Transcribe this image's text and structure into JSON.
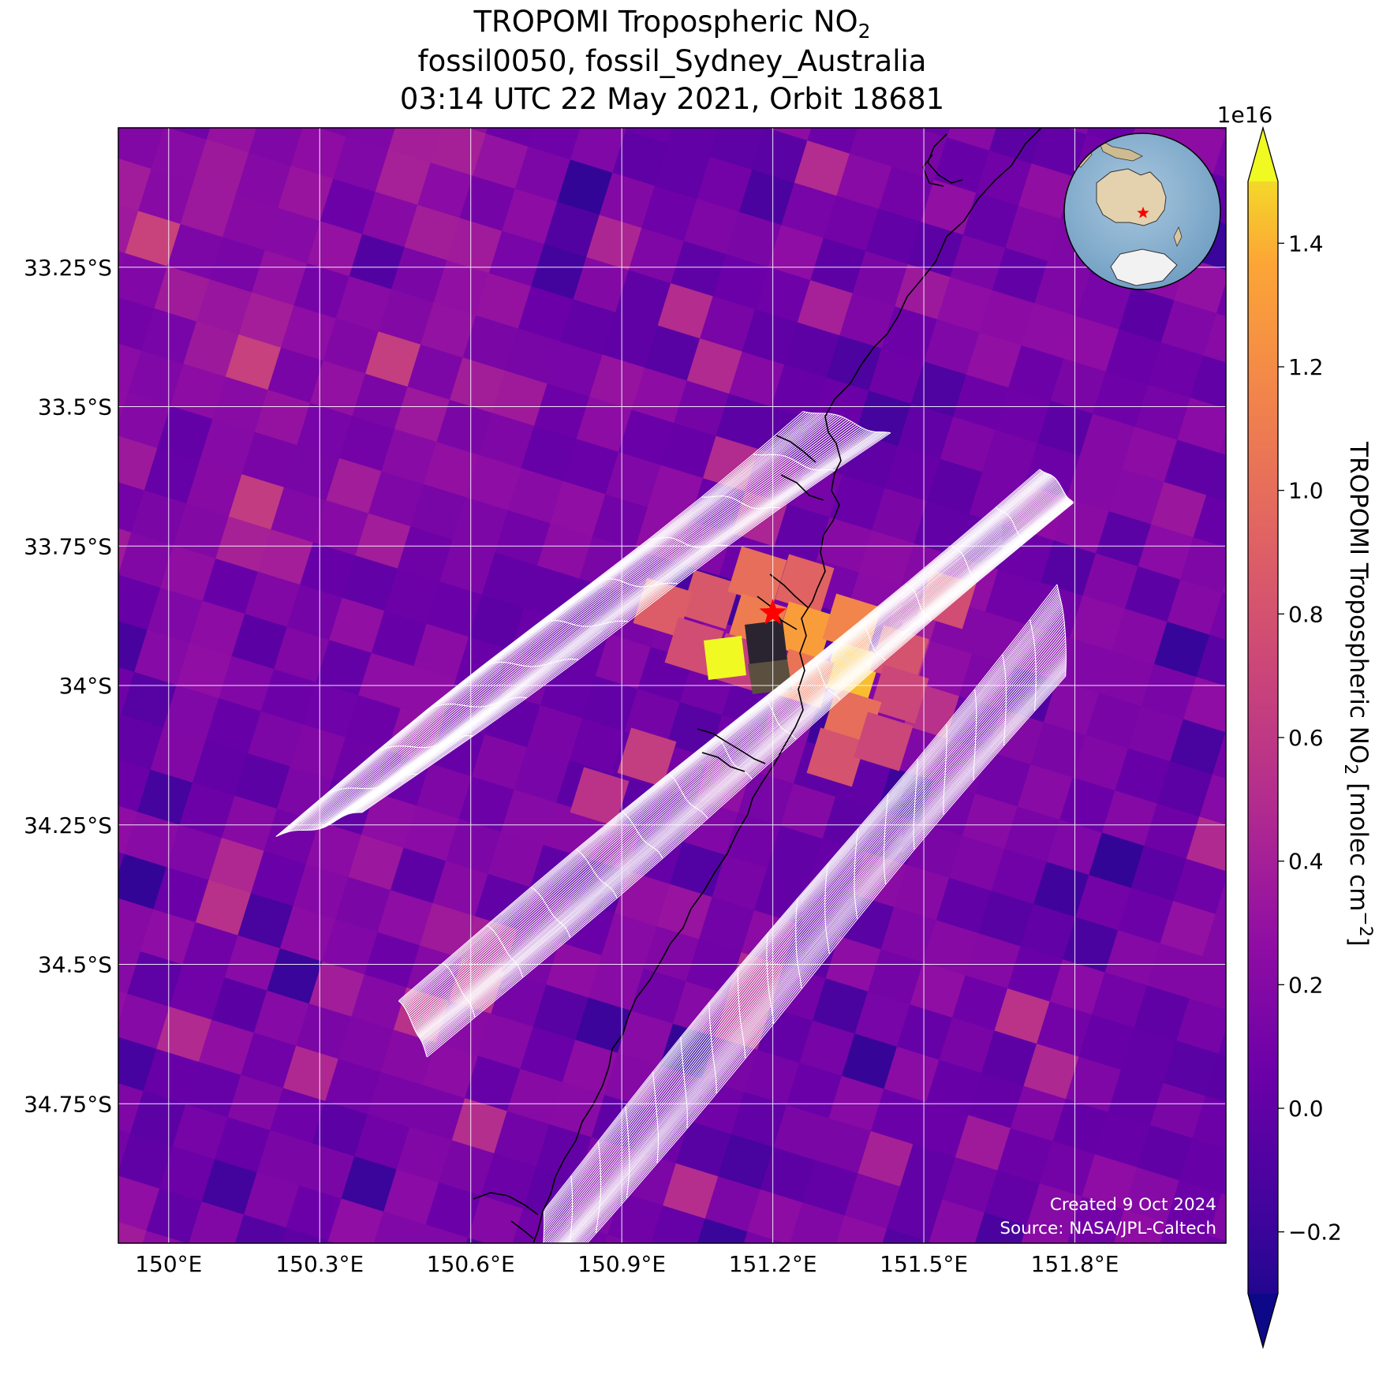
{
  "title": {
    "line1_main": "TROPOMI Tropospheric NO",
    "line1_sub": "2",
    "line2": "fossil0050, fossil_Sydney_Australia",
    "line3": "03:14 UTC 22 May 2021, Orbit 18681"
  },
  "axes": {
    "lon_ticks": [
      {
        "value": 150.0,
        "label": "150°E"
      },
      {
        "value": 150.3,
        "label": "150.3°E"
      },
      {
        "value": 150.6,
        "label": "150.6°E"
      },
      {
        "value": 150.9,
        "label": "150.9°E"
      },
      {
        "value": 151.2,
        "label": "151.2°E"
      },
      {
        "value": 151.5,
        "label": "151.5°E"
      },
      {
        "value": 151.8,
        "label": "151.8°E"
      }
    ],
    "lat_ticks": [
      {
        "value": -33.25,
        "label": "33.25°S"
      },
      {
        "value": -33.5,
        "label": "33.5°S"
      },
      {
        "value": -33.75,
        "label": "33.75°S"
      },
      {
        "value": -34.0,
        "label": "34°S"
      },
      {
        "value": -34.25,
        "label": "34.25°S"
      },
      {
        "value": -34.5,
        "label": "34.5°S"
      },
      {
        "value": -34.75,
        "label": "34.75°S"
      }
    ],
    "lon_range": [
      149.9,
      152.1
    ],
    "lat_range": [
      -35.0,
      -33.0
    ],
    "gridlines": true
  },
  "colorbar": {
    "exponent_label": "1e16",
    "label_main": "TROPOMI Tropospheric NO",
    "label_sub": "2",
    "label_units_a": " [molec cm",
    "label_units_sup": "−2",
    "label_units_b": "]",
    "range": [
      -0.3,
      1.5
    ],
    "extend": "both",
    "colormap": "plasma",
    "ticks": [
      {
        "value": -0.2,
        "label": "−0.2"
      },
      {
        "value": 0.0,
        "label": "0.0"
      },
      {
        "value": 0.2,
        "label": "0.2"
      },
      {
        "value": 0.4,
        "label": "0.4"
      },
      {
        "value": 0.6,
        "label": "0.6"
      },
      {
        "value": 0.8,
        "label": "0.8"
      },
      {
        "value": 1.0,
        "label": "1.0"
      },
      {
        "value": 1.2,
        "label": "1.2"
      },
      {
        "value": 1.4,
        "label": "1.4"
      }
    ]
  },
  "target": {
    "lon": 151.2,
    "lat": -33.87,
    "marker": "red-star",
    "color": "#ff0000"
  },
  "footer": {
    "created": "Created 9 Oct 2024",
    "source": "Source: NASA/JPL-Caltech"
  },
  "inset": {
    "globe": "orthographic",
    "target_marker": "red-star"
  },
  "colors": {
    "background_field": "#5a16a6",
    "grid": "#ffffff",
    "coastline": "#000000",
    "footprint_outline": "#ffffff"
  }
}
